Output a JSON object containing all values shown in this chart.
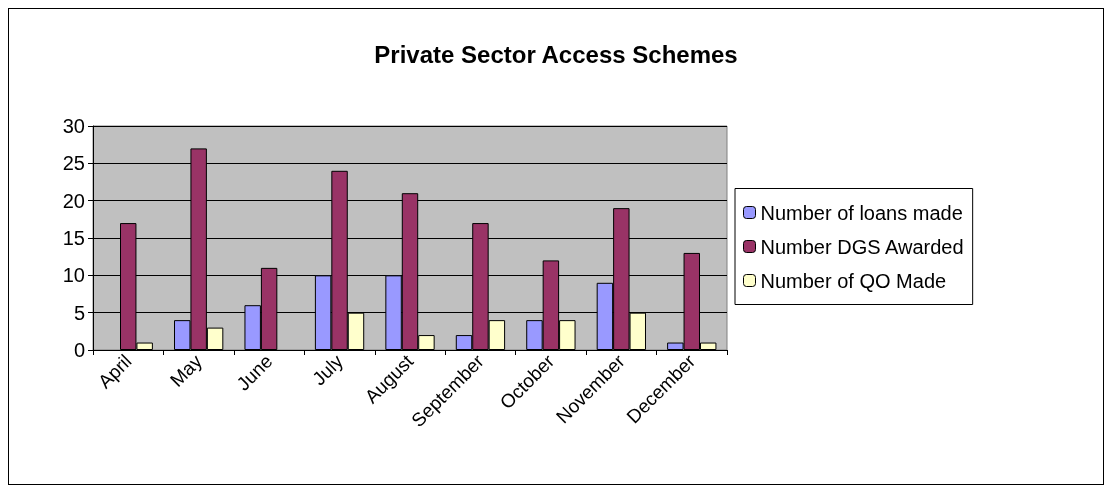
{
  "chart_data": {
    "type": "bar",
    "title": "Private Sector Access Schemes",
    "categories": [
      "April",
      "May",
      "June",
      "July",
      "August",
      "September",
      "October",
      "November",
      "December"
    ],
    "series": [
      {
        "name": "Number of loans made",
        "color": "#9999ff",
        "values": [
          0,
          4,
          6,
          10,
          10,
          2,
          4,
          9,
          1
        ]
      },
      {
        "name": "Number DGS Awarded",
        "color": "#993366",
        "values": [
          17,
          27,
          11,
          24,
          21,
          17,
          12,
          19,
          13
        ]
      },
      {
        "name": "Number of QO Made",
        "color": "#ffffcc",
        "values": [
          1,
          3,
          0,
          5,
          2,
          4,
          4,
          5,
          1
        ]
      }
    ],
    "ylim": [
      0,
      30
    ],
    "yticks": [
      0,
      5,
      10,
      15,
      20,
      25,
      30
    ],
    "grid": "y",
    "legend": "right"
  }
}
